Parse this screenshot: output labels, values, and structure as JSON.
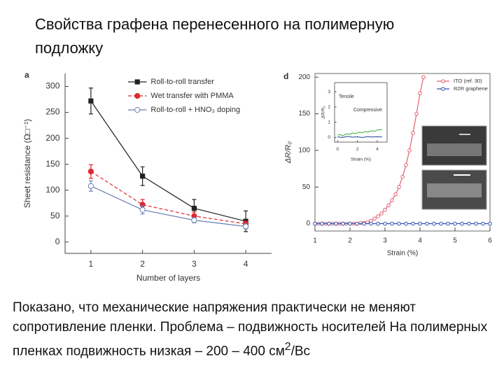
{
  "slide": {
    "title": "Свойства графена перенесенного на полимерную подложку",
    "caption": [
      "Показано, что механические напряжения практически не меняют сопротивление пленки.  Проблема – подвижность носителей На полимерных пленках подвижность низкая – 200 – 400 см",
      "2",
      "/Вс"
    ]
  },
  "chart_data": [
    {
      "type": "line",
      "panel": "a",
      "x": [
        1,
        2,
        3,
        4
      ],
      "xlim": [
        0.5,
        4.5
      ],
      "xticks": [
        1,
        2,
        3,
        4
      ],
      "ylim": [
        -22,
        325
      ],
      "yticks": [
        0,
        50,
        100,
        150,
        200,
        250,
        300
      ],
      "xlabel": "Number of layers",
      "ylabel": "Sheet resistance (Ω□⁻¹)",
      "legend": "upper right",
      "series": [
        {
          "name": "Roll-to-roll transfer",
          "color": "#222222",
          "marker": "square",
          "line_style": "solid",
          "values": [
            272,
            127,
            65,
            40
          ],
          "errors": [
            25,
            18,
            17,
            20
          ]
        },
        {
          "name": "Wet transfer with PMMA",
          "color": "#e0282e",
          "marker": "circle",
          "line_style": "dashed",
          "values": [
            136,
            72,
            50,
            35
          ],
          "errors": [
            13,
            10,
            8,
            5
          ]
        },
        {
          "name": "Roll-to-roll + HNO₃ doping",
          "color": "#6b7fb8",
          "marker": "open-circle",
          "line_style": "solid",
          "values": [
            108,
            62,
            42,
            30
          ],
          "errors": [
            10,
            8,
            5,
            5
          ]
        }
      ]
    },
    {
      "type": "line",
      "panel": "d",
      "xlim": [
        1,
        6
      ],
      "xticks": [
        1,
        2,
        3,
        4,
        5,
        6
      ],
      "ylim": [
        -10,
        205
      ],
      "yticks": [
        0,
        50,
        100,
        150,
        200
      ],
      "xlabel": "Strain (%)",
      "ylabel": "ΔR/R₀",
      "legend": "upper right",
      "series": [
        {
          "name": "ITO (ref. 30)",
          "color": "#e06070",
          "marker": "open-circle",
          "line_style": "solid",
          "x": [
            1.0,
            1.1,
            1.2,
            1.3,
            1.4,
            1.5,
            1.6,
            1.7,
            1.8,
            1.9,
            2.0,
            2.1,
            2.2,
            2.3,
            2.4,
            2.5,
            2.6,
            2.7,
            2.8,
            2.9,
            3.0,
            3.1,
            3.2,
            3.3,
            3.4,
            3.5,
            3.6,
            3.7,
            3.8,
            3.9,
            4.0,
            4.1
          ],
          "values": [
            0,
            0,
            0,
            0,
            0,
            0,
            0,
            0,
            0,
            0,
            0,
            0,
            0,
            1,
            1,
            2,
            4,
            7,
            10,
            14,
            19,
            25,
            32,
            40,
            50,
            64,
            80,
            100,
            124,
            150,
            178,
            200
          ]
        },
        {
          "name": "R2R graphene",
          "color": "#3050b0",
          "marker": "open-circle",
          "line_style": "solid",
          "x": [
            1.0,
            1.2,
            1.4,
            1.6,
            1.8,
            2.0,
            2.2,
            2.4,
            2.6,
            2.8,
            3.0,
            3.2,
            3.4,
            3.6,
            3.8,
            4.0,
            4.2,
            4.4,
            4.6,
            4.8,
            5.0,
            5.2,
            5.4,
            5.6,
            5.8,
            6.0
          ],
          "values": [
            0,
            0,
            0,
            0,
            0,
            0,
            0,
            0,
            0,
            0,
            0,
            0,
            0,
            0,
            0,
            0,
            0,
            0,
            0,
            0,
            0,
            0,
            0,
            0,
            0,
            0
          ]
        }
      ]
    },
    {
      "type": "line",
      "xlim": [
        -0.3,
        5
      ],
      "xticks": [
        0,
        2,
        4
      ],
      "ylim": [
        -0.3,
        3.6
      ],
      "yticks": [
        0,
        1,
        2,
        3
      ],
      "xlabel": "Strain (%)",
      "ylabel": "ΔR/R₀",
      "annotations": [
        "Tensile",
        "Compressive"
      ],
      "series": [
        {
          "color": "#3aaa35",
          "x": [
            0,
            0.25,
            0.5,
            0.75,
            1,
            1.25,
            1.5,
            1.75,
            2,
            2.25,
            2.5,
            2.75,
            3,
            3.25,
            3.5,
            3.75,
            4,
            4.25,
            4.5
          ],
          "values": [
            0.15,
            0.2,
            0.1,
            0.2,
            0.25,
            0.2,
            0.3,
            0.25,
            0.3,
            0.35,
            0.3,
            0.4,
            0.35,
            0.4,
            0.45,
            0.4,
            0.5,
            0.5,
            0.55
          ]
        },
        {
          "color": "#2040a0",
          "x": [
            0,
            0.5,
            1,
            1.5,
            2,
            2.5,
            3,
            3.5,
            4,
            4.5
          ],
          "values": [
            0.05,
            0,
            0.08,
            0.02,
            0.05,
            0,
            0.06,
            0.03,
            0.05,
            0.04
          ]
        }
      ]
    }
  ]
}
